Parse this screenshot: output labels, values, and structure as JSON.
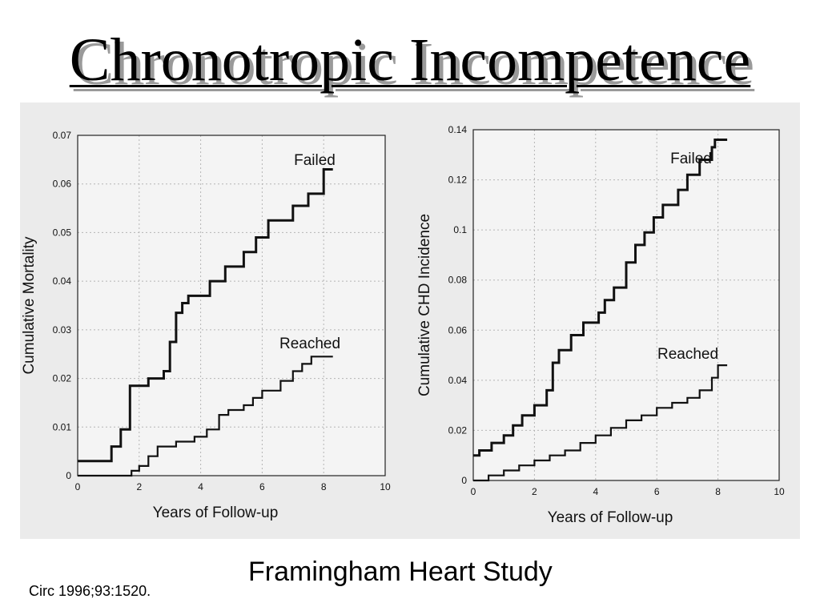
{
  "slide": {
    "title": "Chronotropic Incompetence",
    "citation": "Circ 1996;93:1520.",
    "study": "Framingham Heart Study"
  },
  "chart_data": [
    {
      "type": "line",
      "title": "",
      "xlabel": "Years of Follow-up",
      "ylabel": "Cumulative Mortality",
      "xlim": [
        0,
        10
      ],
      "ylim": [
        0,
        0.07
      ],
      "xticks": [
        "0",
        "2",
        "4",
        "6",
        "8",
        "10"
      ],
      "yticks": [
        "0",
        "0.01",
        "0.02",
        "0.03",
        "0.04",
        "0.05",
        "0.06",
        "0.07"
      ],
      "grid": true,
      "series": [
        {
          "name": "Failed",
          "x": [
            0,
            1.1,
            1.1,
            1.4,
            1.4,
            1.7,
            1.7,
            2.3,
            2.3,
            2.8,
            2.8,
            3.0,
            3.0,
            3.2,
            3.2,
            3.4,
            3.4,
            3.6,
            3.6,
            4.3,
            4.3,
            4.8,
            4.8,
            5.4,
            5.4,
            5.8,
            5.8,
            6.2,
            6.2,
            7.0,
            7.0,
            7.2,
            7.2,
            7.5,
            7.5,
            8.0,
            8.0,
            8.3
          ],
          "y": [
            0.003,
            0.003,
            0.006,
            0.006,
            0.0095,
            0.0095,
            0.0185,
            0.0185,
            0.02,
            0.02,
            0.0215,
            0.0215,
            0.0275,
            0.0275,
            0.0335,
            0.0335,
            0.0355,
            0.0355,
            0.037,
            0.037,
            0.04,
            0.04,
            0.043,
            0.043,
            0.046,
            0.046,
            0.049,
            0.049,
            0.0525,
            0.0525,
            0.0555,
            0.0555,
            0.0555,
            0.0555,
            0.058,
            0.058,
            0.063,
            0.063
          ]
        },
        {
          "name": "Reached",
          "x": [
            0,
            1.75,
            1.75,
            2.0,
            2.0,
            2.3,
            2.3,
            2.6,
            2.6,
            3.2,
            3.2,
            3.8,
            3.8,
            4.2,
            4.2,
            4.6,
            4.6,
            4.9,
            4.9,
            5.4,
            5.4,
            5.7,
            5.7,
            6.0,
            6.0,
            6.6,
            6.6,
            7.0,
            7.0,
            7.3,
            7.3,
            7.6,
            7.6,
            8.3
          ],
          "y": [
            0,
            0,
            0.001,
            0.001,
            0.002,
            0.002,
            0.004,
            0.004,
            0.006,
            0.006,
            0.007,
            0.007,
            0.008,
            0.008,
            0.0095,
            0.0095,
            0.0125,
            0.0125,
            0.0135,
            0.0135,
            0.0145,
            0.0145,
            0.016,
            0.016,
            0.0175,
            0.0175,
            0.0195,
            0.0195,
            0.0215,
            0.0215,
            0.023,
            0.023,
            0.0245,
            0.0245
          ]
        }
      ]
    },
    {
      "type": "line",
      "title": "",
      "xlabel": "Years of Follow-up",
      "ylabel": "Cumulative CHD Incidence",
      "xlim": [
        0,
        10
      ],
      "ylim": [
        0,
        0.14
      ],
      "xticks": [
        "0",
        "2",
        "4",
        "6",
        "8",
        "10"
      ],
      "yticks": [
        "0",
        "0.02",
        "0.04",
        "0.06",
        "0.08",
        "0.1",
        "0.12",
        "0.14"
      ],
      "grid": true,
      "series": [
        {
          "name": "Failed",
          "x": [
            0,
            0.2,
            0.2,
            0.6,
            0.6,
            1.0,
            1.0,
            1.3,
            1.3,
            1.6,
            1.6,
            2.0,
            2.0,
            2.4,
            2.4,
            2.6,
            2.6,
            2.8,
            2.8,
            3.2,
            3.2,
            3.6,
            3.6,
            4.1,
            4.1,
            4.3,
            4.3,
            4.6,
            4.6,
            5.0,
            5.0,
            5.3,
            5.3,
            5.6,
            5.6,
            5.9,
            5.9,
            6.2,
            6.2,
            6.7,
            6.7,
            7.0,
            7.0,
            7.4,
            7.4,
            7.8,
            7.8,
            7.9,
            7.9,
            8.3
          ],
          "y": [
            0.01,
            0.01,
            0.012,
            0.012,
            0.015,
            0.015,
            0.018,
            0.018,
            0.022,
            0.022,
            0.026,
            0.026,
            0.03,
            0.03,
            0.036,
            0.036,
            0.047,
            0.047,
            0.052,
            0.052,
            0.058,
            0.058,
            0.063,
            0.063,
            0.067,
            0.067,
            0.072,
            0.072,
            0.077,
            0.077,
            0.087,
            0.087,
            0.094,
            0.094,
            0.099,
            0.099,
            0.105,
            0.105,
            0.11,
            0.11,
            0.116,
            0.116,
            0.122,
            0.122,
            0.128,
            0.128,
            0.133,
            0.133,
            0.136,
            0.136
          ]
        },
        {
          "name": "Reached",
          "x": [
            0,
            0.5,
            0.5,
            1.0,
            1.0,
            1.5,
            1.5,
            2.0,
            2.0,
            2.5,
            2.5,
            3.0,
            3.0,
            3.5,
            3.5,
            4.0,
            4.0,
            4.5,
            4.5,
            5.0,
            5.0,
            5.5,
            5.5,
            6.0,
            6.0,
            6.5,
            6.5,
            7.0,
            7.0,
            7.4,
            7.4,
            7.8,
            7.8,
            8.0,
            8.0,
            8.3
          ],
          "y": [
            0,
            0,
            0.002,
            0.002,
            0.004,
            0.004,
            0.006,
            0.006,
            0.008,
            0.008,
            0.01,
            0.01,
            0.012,
            0.012,
            0.015,
            0.015,
            0.018,
            0.018,
            0.021,
            0.021,
            0.024,
            0.024,
            0.026,
            0.026,
            0.029,
            0.029,
            0.031,
            0.031,
            0.033,
            0.033,
            0.036,
            0.036,
            0.041,
            0.041,
            0.046,
            0.046
          ]
        }
      ]
    }
  ]
}
